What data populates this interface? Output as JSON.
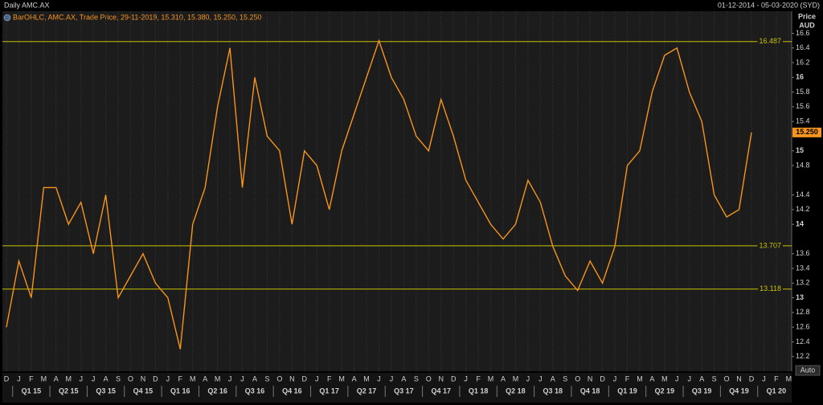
{
  "chart_data": {
    "type": "line",
    "title": "Daily AMC.AX",
    "date_range": "01-12-2014 - 05-03-2020 (SYD)",
    "legend_text": "BarOHLC, AMC.AX, Trade Price, 29-11-2019, 15.310, 15.380, 15.250, 15.250",
    "y_axis_label": "Price",
    "y_axis_unit": "AUD",
    "auto_button": "Auto",
    "categories": [
      "D",
      "J",
      "F",
      "M",
      "A",
      "M",
      "J",
      "J",
      "A",
      "S",
      "O",
      "N",
      "D",
      "J",
      "F",
      "M",
      "A",
      "M",
      "J",
      "J",
      "A",
      "S",
      "O",
      "N",
      "D",
      "J",
      "F",
      "M",
      "A",
      "M",
      "J",
      "J",
      "A",
      "S",
      "O",
      "N",
      "D",
      "J",
      "F",
      "M",
      "A",
      "M",
      "J",
      "J",
      "A",
      "S",
      "O",
      "N",
      "D",
      "J",
      "F",
      "M",
      "A",
      "M",
      "J",
      "J",
      "A",
      "S",
      "O",
      "N",
      "D",
      "J",
      "F",
      "M"
    ],
    "quarters": [
      "Q1 15",
      "Q2 15",
      "Q3 15",
      "Q4 15",
      "Q1 16",
      "Q2 16",
      "Q3 16",
      "Q4 16",
      "Q1 17",
      "Q2 17",
      "Q3 17",
      "Q4 17",
      "Q1 18",
      "Q2 18",
      "Q3 18",
      "Q4 18",
      "Q1 19",
      "Q2 19",
      "Q3 19",
      "Q4 19",
      "Q1 20"
    ],
    "series": [
      {
        "color": "#f7941d",
        "values": [
          12.6,
          13.5,
          13.0,
          14.5,
          14.5,
          14.0,
          14.3,
          13.6,
          14.4,
          13.0,
          13.3,
          13.6,
          13.2,
          13.0,
          12.3,
          14.0,
          14.5,
          15.6,
          16.4,
          14.5,
          16.0,
          15.2,
          15.0,
          14.0,
          15.0,
          14.8,
          14.2,
          15.0,
          15.5,
          16.0,
          16.5,
          16.0,
          15.7,
          15.2,
          15.0,
          15.7,
          15.2,
          14.6,
          14.3,
          14.0,
          13.8,
          14.0,
          14.6,
          14.3,
          13.7,
          13.3,
          13.1,
          13.5,
          13.2,
          13.7,
          14.8,
          15.0,
          15.8,
          16.3,
          16.4,
          15.8,
          15.4,
          14.4,
          14.1,
          14.2,
          15.25,
          null,
          null,
          null
        ]
      }
    ],
    "ylim": [
      12.0,
      16.9
    ],
    "yticks": [
      12.2,
      12.4,
      12.6,
      12.8,
      13,
      13.2,
      13.4,
      13.6,
      14,
      14.2,
      14.4,
      14.8,
      15,
      15.4,
      15.6,
      15.8,
      16,
      16.2,
      16.4,
      16.6
    ],
    "hlines": [
      16.487,
      13.707,
      13.118
    ],
    "hline_color": "#c8c200",
    "last_price": {
      "value": 15.25,
      "label": "15.250"
    }
  }
}
